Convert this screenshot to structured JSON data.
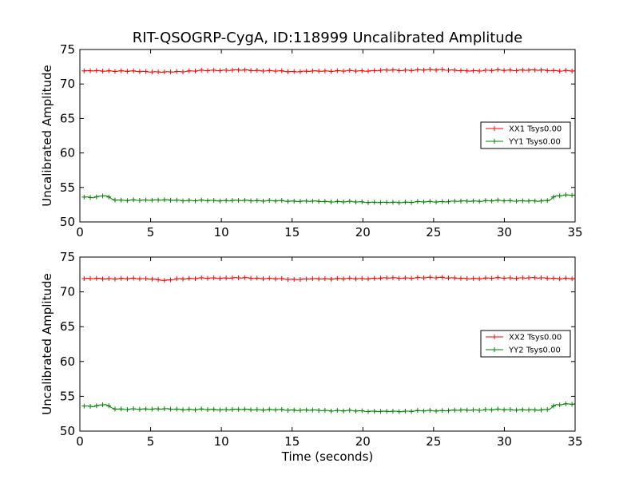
{
  "title": "RIT-QSOGRP-CygA, ID:118999 Uncalibrated Amplitude",
  "chart_data": [
    {
      "type": "line",
      "ylabel": "Uncalibrated Amplitude",
      "xlabel": "",
      "xlim": [
        0,
        35
      ],
      "ylim": [
        50,
        75
      ],
      "xticks": [
        0,
        5,
        10,
        15,
        20,
        25,
        30,
        35
      ],
      "yticks": [
        50,
        55,
        60,
        65,
        70,
        75
      ],
      "grid": false,
      "legend_position": "center-right",
      "series": [
        {
          "name": "XX1 Tsys0.00",
          "color": "#ff0000",
          "keypoints": [
            [
              0.3,
              71.9
            ],
            [
              2,
              71.9
            ],
            [
              5,
              71.8
            ],
            [
              6,
              71.7
            ],
            [
              8,
              71.9
            ],
            [
              10,
              72.0
            ],
            [
              12,
              72.0
            ],
            [
              15,
              71.8
            ],
            [
              18,
              71.9
            ],
            [
              20,
              71.9
            ],
            [
              22,
              72.0
            ],
            [
              24,
              72.0
            ],
            [
              25.5,
              72.1
            ],
            [
              27,
              71.9
            ],
            [
              30,
              72.0
            ],
            [
              33,
              72.0
            ],
            [
              34,
              71.9
            ],
            [
              35,
              71.9
            ]
          ]
        },
        {
          "name": "YY1 Tsys0.00",
          "color": "#008000",
          "keypoints": [
            [
              0.3,
              53.6
            ],
            [
              1.0,
              53.5
            ],
            [
              1.8,
              53.9
            ],
            [
              2.3,
              53.3
            ],
            [
              3,
              53.1
            ],
            [
              5,
              53.2
            ],
            [
              8,
              53.1
            ],
            [
              12,
              53.1
            ],
            [
              16,
              53.0
            ],
            [
              20,
              52.9
            ],
            [
              21.5,
              52.8
            ],
            [
              24,
              52.9
            ],
            [
              27,
              53.0
            ],
            [
              30,
              53.1
            ],
            [
              32.5,
              53.0
            ],
            [
              33.2,
              53.2
            ],
            [
              33.6,
              53.8
            ],
            [
              35,
              53.9
            ]
          ]
        }
      ]
    },
    {
      "type": "line",
      "ylabel": "Uncalibrated Amplitude",
      "xlabel": "Time (seconds)",
      "xlim": [
        0,
        35
      ],
      "ylim": [
        50,
        75
      ],
      "xticks": [
        0,
        5,
        10,
        15,
        20,
        25,
        30,
        35
      ],
      "yticks": [
        50,
        55,
        60,
        65,
        70,
        75
      ],
      "grid": false,
      "legend_position": "center-right",
      "series": [
        {
          "name": "XX2 Tsys0.00",
          "color": "#ff0000",
          "keypoints": [
            [
              0.3,
              71.9
            ],
            [
              2,
              71.9
            ],
            [
              5,
              71.9
            ],
            [
              6,
              71.6
            ],
            [
              7,
              71.9
            ],
            [
              10,
              72.0
            ],
            [
              12,
              72.0
            ],
            [
              15,
              71.8
            ],
            [
              18,
              71.9
            ],
            [
              20,
              71.9
            ],
            [
              22,
              72.0
            ],
            [
              24,
              72.0
            ],
            [
              25.5,
              72.1
            ],
            [
              27,
              71.9
            ],
            [
              30,
              72.0
            ],
            [
              33,
              72.0
            ],
            [
              34,
              71.9
            ],
            [
              35,
              71.9
            ]
          ]
        },
        {
          "name": "YY2 Tsys0.00",
          "color": "#008000",
          "keypoints": [
            [
              0.3,
              53.6
            ],
            [
              1.0,
              53.5
            ],
            [
              1.8,
              53.9
            ],
            [
              2.3,
              53.3
            ],
            [
              3,
              53.1
            ],
            [
              5,
              53.2
            ],
            [
              8,
              53.1
            ],
            [
              12,
              53.1
            ],
            [
              16,
              53.0
            ],
            [
              20,
              52.9
            ],
            [
              21.5,
              52.8
            ],
            [
              24,
              52.9
            ],
            [
              27,
              53.0
            ],
            [
              30,
              53.1
            ],
            [
              32.5,
              53.0
            ],
            [
              33.2,
              53.2
            ],
            [
              33.6,
              53.8
            ],
            [
              35,
              53.9
            ]
          ]
        }
      ]
    }
  ]
}
